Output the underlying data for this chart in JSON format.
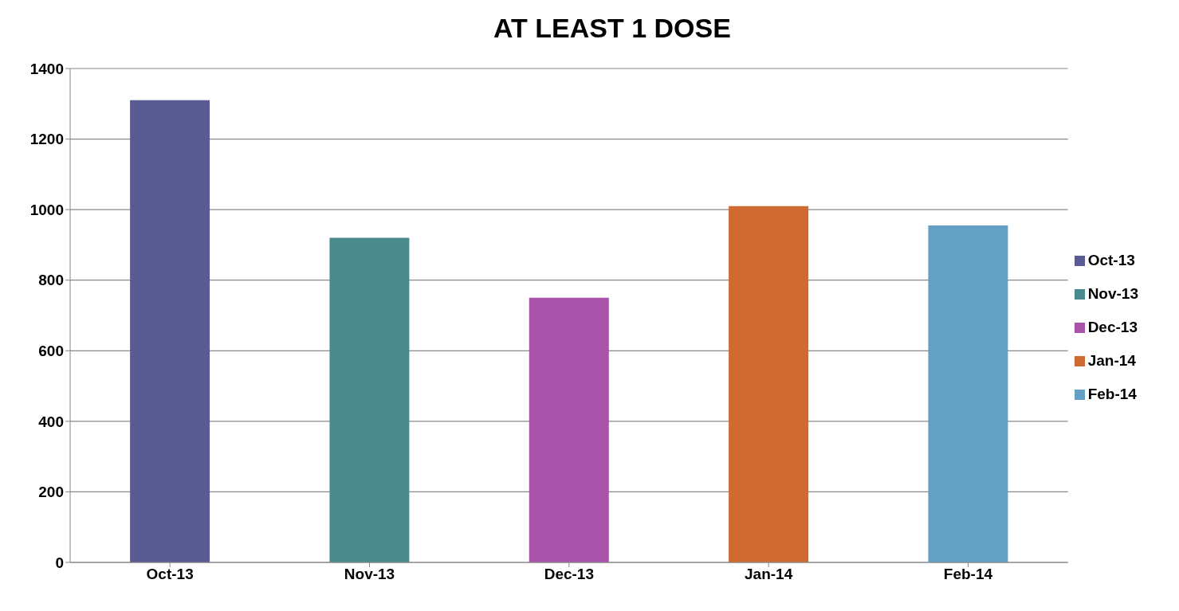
{
  "chart_data": {
    "type": "bar",
    "title": "AT LEAST 1 DOSE",
    "categories": [
      "Oct-13",
      "Nov-13",
      "Dec-13",
      "Jan-14",
      "Feb-14"
    ],
    "series": [
      {
        "name": "Oct-13",
        "color": "#5b5b94",
        "values": [
          1310,
          null,
          null,
          null,
          null
        ]
      },
      {
        "name": "Nov-13",
        "color": "#4b8a8c",
        "values": [
          null,
          920,
          null,
          null,
          null
        ]
      },
      {
        "name": "Dec-13",
        "color": "#a853a9",
        "values": [
          null,
          null,
          750,
          null,
          null
        ]
      },
      {
        "name": "Jan-14",
        "color": "#cf6b32",
        "values": [
          null,
          null,
          null,
          1010,
          null
        ]
      },
      {
        "name": "Feb-14",
        "color": "#63a0c4",
        "values": [
          null,
          null,
          null,
          null,
          955
        ]
      }
    ],
    "stacked": true,
    "ylim": [
      0,
      1400
    ],
    "yticks": [
      0,
      200,
      400,
      600,
      800,
      1000,
      1200,
      1400
    ],
    "grid": "y",
    "legend": "right"
  }
}
